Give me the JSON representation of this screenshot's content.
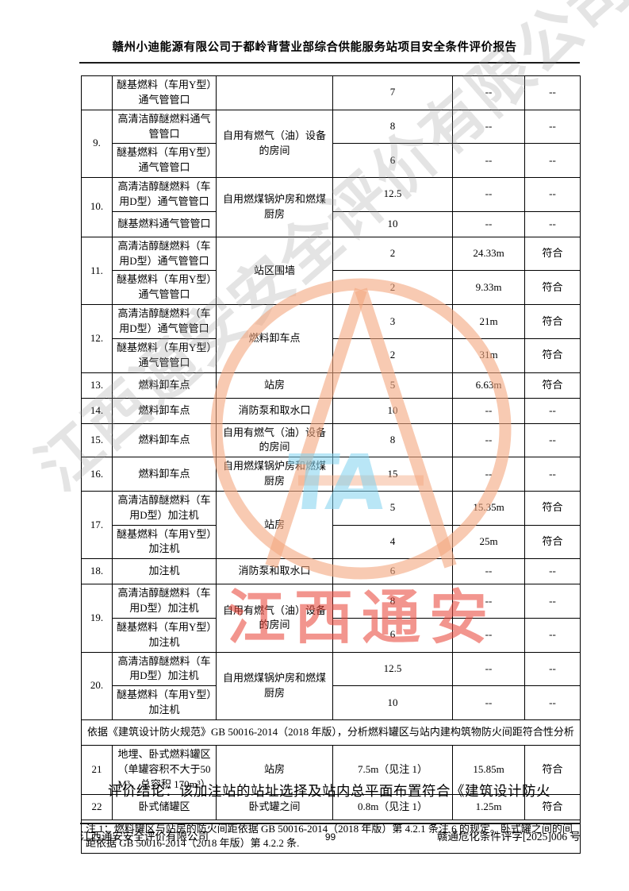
{
  "page": {
    "header_title": "赣州小迪能源有限公司于都岭背营业部综合供能服务站项目安全条件评价报告",
    "conclusion_line": "评价结论：该加注站的站址选择及站内总平面布置符合《建筑设计防火"
  },
  "footer": {
    "company": "江西通安安全评价有限公司",
    "page_number": "99",
    "doc_number": "赣通危化条件评字[2025]006 号"
  },
  "watermark": {
    "gray_text": "江西通安安全评价有限公司",
    "blue_text": "TA",
    "red_text": "江西通安",
    "stamp_color": "rgba(244,167,126,0.6)"
  },
  "table": {
    "rows": [
      {
        "cells": [
          {
            "t": ""
          },
          {
            "t": "醚基燃料（车用Y型）通气管管口"
          },
          {
            "t": ""
          },
          {
            "t": "7"
          },
          {
            "t": "--"
          },
          {
            "t": "--"
          }
        ]
      },
      {
        "cells": [
          {
            "t": "9.",
            "rs": 2
          },
          {
            "t": "高清洁醇醚燃料通气管管口"
          },
          {
            "t": "自用有燃气（油）设备的房间",
            "rs": 2
          },
          {
            "t": "8"
          },
          {
            "t": "--"
          },
          {
            "t": "--"
          }
        ]
      },
      {
        "cells": [
          {
            "t": "醚基燃料（车用Y型）通气管管口"
          },
          {
            "t": "6"
          },
          {
            "t": "--"
          },
          {
            "t": "--"
          }
        ]
      },
      {
        "cells": [
          {
            "t": "10.",
            "rs": 2
          },
          {
            "t": "高清洁醇醚燃料（车用D型）通气管管口"
          },
          {
            "t": "自用燃煤锅炉房和燃煤厨房",
            "rs": 2
          },
          {
            "t": "12.5"
          },
          {
            "t": "--"
          },
          {
            "t": "--"
          }
        ]
      },
      {
        "cells": [
          {
            "t": "醚基燃料通气管管口"
          },
          {
            "t": "10"
          },
          {
            "t": "--"
          },
          {
            "t": "--"
          }
        ]
      },
      {
        "cells": [
          {
            "t": "11.",
            "rs": 2
          },
          {
            "t": "高清洁醇醚燃料（车用D型）通气管管口"
          },
          {
            "t": "站区围墙",
            "rs": 2
          },
          {
            "t": "2"
          },
          {
            "t": "24.33m"
          },
          {
            "t": "符合"
          }
        ]
      },
      {
        "cells": [
          {
            "t": "醚基燃料（车用Y型）通气管管口"
          },
          {
            "t": "2"
          },
          {
            "t": "9.33m"
          },
          {
            "t": "符合"
          }
        ]
      },
      {
        "cells": [
          {
            "t": "12.",
            "rs": 2
          },
          {
            "t": "高清洁醇醚燃料（车用D型）通气管管口"
          },
          {
            "t": "燃料卸车点",
            "rs": 2
          },
          {
            "t": "3"
          },
          {
            "t": "21m"
          },
          {
            "t": "符合"
          }
        ]
      },
      {
        "cells": [
          {
            "t": "醚基燃料（车用Y型）通气管管口"
          },
          {
            "t": "2"
          },
          {
            "t": "31m"
          },
          {
            "t": "符合"
          }
        ]
      },
      {
        "cells": [
          {
            "t": "13."
          },
          {
            "t": "燃料卸车点"
          },
          {
            "t": "站房"
          },
          {
            "t": "5"
          },
          {
            "t": "6.63m"
          },
          {
            "t": "符合"
          }
        ]
      },
      {
        "cells": [
          {
            "t": "14."
          },
          {
            "t": "燃料卸车点"
          },
          {
            "t": "消防泵和取水口"
          },
          {
            "t": "10"
          },
          {
            "t": "--"
          },
          {
            "t": "--"
          }
        ]
      },
      {
        "cells": [
          {
            "t": "15."
          },
          {
            "t": "燃料卸车点"
          },
          {
            "t": "自用有燃气（油）设备的房间"
          },
          {
            "t": "8"
          },
          {
            "t": "--"
          },
          {
            "t": "--"
          }
        ]
      },
      {
        "cells": [
          {
            "t": "16."
          },
          {
            "t": "燃料卸车点"
          },
          {
            "t": "自用燃煤锅炉房和燃煤厨房"
          },
          {
            "t": "15"
          },
          {
            "t": "--"
          },
          {
            "t": "--"
          }
        ]
      },
      {
        "cells": [
          {
            "t": "17.",
            "rs": 2
          },
          {
            "t": "高清洁醇醚燃料（车用D型）加注机"
          },
          {
            "t": "站房",
            "rs": 2
          },
          {
            "t": "5"
          },
          {
            "t": "15.35m"
          },
          {
            "t": "符合"
          }
        ]
      },
      {
        "cells": [
          {
            "t": "醚基燃料（车用Y型）加注机"
          },
          {
            "t": "4"
          },
          {
            "t": "25m"
          },
          {
            "t": "符合"
          }
        ]
      },
      {
        "cells": [
          {
            "t": "18."
          },
          {
            "t": "加注机"
          },
          {
            "t": "消防泵和取水口"
          },
          {
            "t": "6"
          },
          {
            "t": "--"
          },
          {
            "t": "--"
          }
        ]
      },
      {
        "cells": [
          {
            "t": "19.",
            "rs": 2
          },
          {
            "t": "高清洁醇醚燃料（车用D型）加注机"
          },
          {
            "t": "自用有燃气（油）设备的房间",
            "rs": 2
          },
          {
            "t": "8"
          },
          {
            "t": "--"
          },
          {
            "t": "--"
          }
        ]
      },
      {
        "cells": [
          {
            "t": "醚基燃料（车用Y型）加注机"
          },
          {
            "t": "6"
          },
          {
            "t": "--"
          },
          {
            "t": "--"
          }
        ]
      },
      {
        "cells": [
          {
            "t": "20.",
            "rs": 2
          },
          {
            "t": "高清洁醇醚燃料（车用D型）加注机"
          },
          {
            "t": "自用燃煤锅炉房和燃煤厨房",
            "rs": 2
          },
          {
            "t": "12.5"
          },
          {
            "t": "--"
          },
          {
            "t": "--"
          }
        ]
      },
      {
        "cells": [
          {
            "t": "醚基燃料（车用Y型）加注机"
          },
          {
            "t": "10"
          },
          {
            "t": "--"
          },
          {
            "t": "--"
          }
        ]
      },
      {
        "cells": [
          {
            "t": "依据《建筑设计防火规范》GB 50016-2014（2018 年版），分析燃料罐区与站内建构筑物防火间距符合性分析",
            "cs": 6
          }
        ]
      },
      {
        "cells": [
          {
            "t": "21"
          },
          {
            "t": "地埋、卧式燃料罐区（单罐容积不大于50M³，总容积 170m³）"
          },
          {
            "t": "站房"
          },
          {
            "t": "7.5m（见注 1）"
          },
          {
            "t": "15.85m"
          },
          {
            "t": "符合"
          }
        ]
      },
      {
        "cells": [
          {
            "t": "22"
          },
          {
            "t": "卧式储罐区"
          },
          {
            "t": "卧式罐之间"
          },
          {
            "t": "0.8m（见注 1）"
          },
          {
            "t": "1.25m"
          },
          {
            "t": "符合"
          }
        ]
      },
      {
        "cells": [
          {
            "t": "注 1：燃料罐区与站房的防火间距依据 GB 50016-2014（2018 年版）第 4.2.1 条注 6 的规定。卧式罐之间的间距依据 GB 50016-2014（2018 年版）第 4.2.2 条.",
            "cs": 6,
            "align": "left"
          }
        ]
      }
    ]
  }
}
